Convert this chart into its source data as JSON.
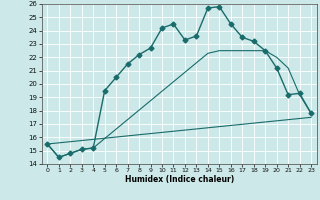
{
  "xlabel": "Humidex (Indice chaleur)",
  "ylabel": "",
  "xlim": [
    -0.5,
    23.5
  ],
  "ylim": [
    14,
    26
  ],
  "yticks": [
    14,
    15,
    16,
    17,
    18,
    19,
    20,
    21,
    22,
    23,
    24,
    25,
    26
  ],
  "xticks": [
    0,
    1,
    2,
    3,
    4,
    5,
    6,
    7,
    8,
    9,
    10,
    11,
    12,
    13,
    14,
    15,
    16,
    17,
    18,
    19,
    20,
    21,
    22,
    23
  ],
  "bg_color": "#cce8e8",
  "grid_color": "#ffffff",
  "line_color": "#1a6b6b",
  "series": [
    {
      "x": [
        0,
        1,
        2,
        3,
        4,
        5,
        6,
        7,
        8,
        9,
        10,
        11,
        12,
        13,
        14,
        15,
        16,
        17,
        18,
        19,
        20,
        21,
        22,
        23
      ],
      "y": [
        15.5,
        14.5,
        14.8,
        15.1,
        15.2,
        19.5,
        20.5,
        21.5,
        22.2,
        22.7,
        24.2,
        24.5,
        23.3,
        23.6,
        25.7,
        25.8,
        24.5,
        23.5,
        23.2,
        22.5,
        21.2,
        19.2,
        19.3,
        17.8
      ],
      "marker": "D",
      "linewidth": 1.0,
      "markersize": 2.5
    },
    {
      "x": [
        0,
        1,
        2,
        3,
        4,
        14,
        15,
        19,
        20,
        21,
        22,
        23
      ],
      "y": [
        15.5,
        14.5,
        14.8,
        15.1,
        15.2,
        22.3,
        22.5,
        22.5,
        22.0,
        21.2,
        19.2,
        17.8
      ],
      "marker": null,
      "linewidth": 0.8
    },
    {
      "x": [
        0,
        23
      ],
      "y": [
        15.5,
        17.5
      ],
      "marker": null,
      "linewidth": 0.8
    }
  ]
}
